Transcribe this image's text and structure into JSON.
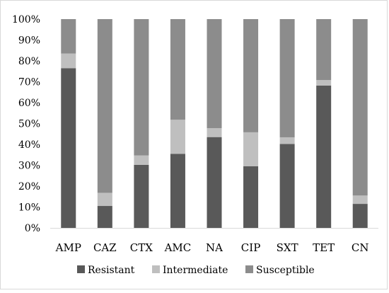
{
  "chart_data": {
    "type": "bar",
    "stacked": true,
    "categories": [
      "AMP",
      "CAZ",
      "CTX",
      "AMC",
      "NA",
      "CIP",
      "SXT",
      "TET",
      "CN"
    ],
    "series": [
      {
        "name": "Resistant",
        "color": "#595959",
        "values": [
          76.5,
          10.5,
          30.2,
          35.5,
          43.5,
          29.5,
          40.2,
          68.2,
          11.5
        ]
      },
      {
        "name": "Intermediate",
        "color": "#bfbfbf",
        "values": [
          7.0,
          6.3,
          4.5,
          16.3,
          4.3,
          16.3,
          3.2,
          2.6,
          4.0
        ]
      },
      {
        "name": "Susceptible",
        "color": "#8c8c8c",
        "values": [
          16.5,
          83.2,
          65.3,
          48.2,
          52.2,
          54.2,
          56.6,
          29.2,
          84.5
        ]
      }
    ],
    "ylim": [
      0,
      100
    ],
    "yticks": [
      "0%",
      "10%",
      "20%",
      "30%",
      "40%",
      "50%",
      "60%",
      "70%",
      "80%",
      "90%",
      "100%"
    ],
    "grid": false,
    "legend_position": "bottom"
  }
}
